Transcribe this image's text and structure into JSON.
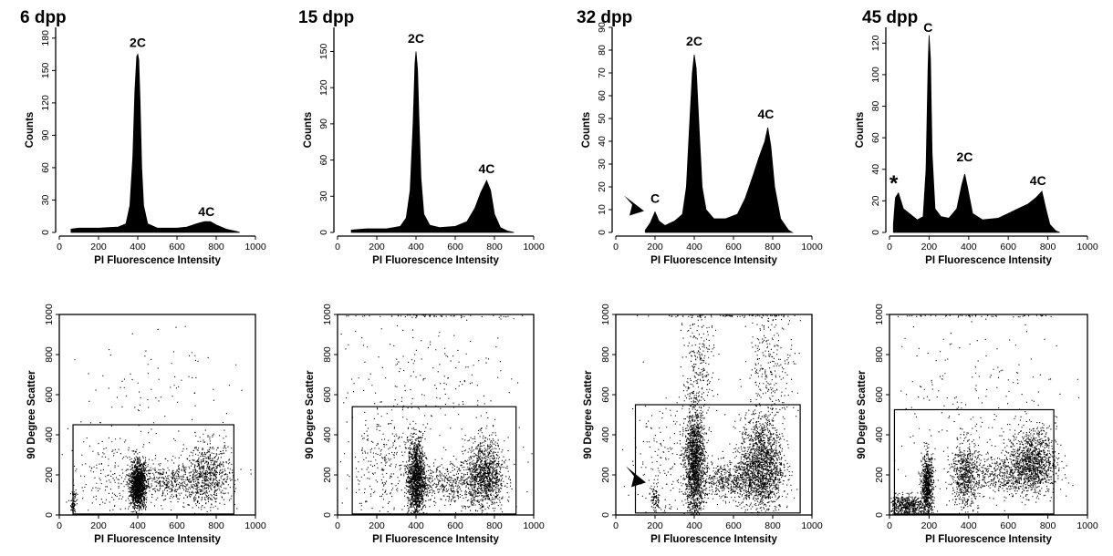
{
  "chart_data": [
    {
      "type": "area",
      "title": "6 dpp",
      "xlabel": "PI Fluorescence Intensity",
      "ylabel": "Counts",
      "xlim": [
        0,
        1000
      ],
      "ylim": [
        0,
        190
      ],
      "xticks": [
        "0",
        "200",
        "400",
        "600",
        "800",
        "1000"
      ],
      "yticks": [
        "0",
        "30",
        "60",
        "90",
        "120",
        "150",
        "180"
      ],
      "series": [
        {
          "points": [
            [
              60,
              3
            ],
            [
              100,
              4
            ],
            [
              200,
              4
            ],
            [
              300,
              5
            ],
            [
              340,
              8
            ],
            [
              360,
              25
            ],
            [
              375,
              70
            ],
            [
              385,
              130
            ],
            [
              395,
              163
            ],
            [
              400,
              165
            ],
            [
              405,
              160
            ],
            [
              412,
              120
            ],
            [
              420,
              60
            ],
            [
              430,
              25
            ],
            [
              450,
              8
            ],
            [
              500,
              4
            ],
            [
              600,
              4
            ],
            [
              650,
              5
            ],
            [
              700,
              8
            ],
            [
              740,
              10
            ],
            [
              770,
              10
            ],
            [
              800,
              7
            ],
            [
              850,
              3
            ],
            [
              900,
              1
            ],
            [
              920,
              0
            ]
          ]
        }
      ],
      "annotations": [
        {
          "text": "2C",
          "x": 400,
          "y": 172
        },
        {
          "text": "4C",
          "x": 750,
          "y": 15
        }
      ]
    },
    {
      "type": "area",
      "title": "15 dpp",
      "xlabel": "PI Fluorescence Intensity",
      "ylabel": "Counts",
      "xlim": [
        0,
        1000
      ],
      "ylim": [
        0,
        170
      ],
      "xticks": [
        "0",
        "200",
        "400",
        "600",
        "800",
        "1000"
      ],
      "yticks": [
        "0",
        "30",
        "60",
        "90",
        "120",
        "150"
      ],
      "series": [
        {
          "points": [
            [
              70,
              2
            ],
            [
              150,
              3
            ],
            [
              250,
              3
            ],
            [
              320,
              5
            ],
            [
              350,
              12
            ],
            [
              370,
              35
            ],
            [
              385,
              90
            ],
            [
              395,
              140
            ],
            [
              400,
              150
            ],
            [
              408,
              135
            ],
            [
              415,
              95
            ],
            [
              425,
              45
            ],
            [
              440,
              15
            ],
            [
              470,
              6
            ],
            [
              520,
              4
            ],
            [
              600,
              5
            ],
            [
              660,
              9
            ],
            [
              700,
              20
            ],
            [
              730,
              33
            ],
            [
              760,
              43
            ],
            [
              780,
              35
            ],
            [
              800,
              15
            ],
            [
              830,
              4
            ],
            [
              870,
              1
            ],
            [
              900,
              0
            ]
          ]
        }
      ],
      "annotations": [
        {
          "text": "2C",
          "x": 400,
          "y": 157
        },
        {
          "text": "4C",
          "x": 760,
          "y": 49
        }
      ]
    },
    {
      "type": "area",
      "title": "32 dpp",
      "xlabel": "PI Fluorescence Intensity",
      "ylabel": "Counts",
      "xlim": [
        0,
        1000
      ],
      "ylim": [
        0,
        90
      ],
      "xticks": [
        "0",
        "200",
        "400",
        "600",
        "800",
        "1000"
      ],
      "yticks": [
        "0",
        "10",
        "20",
        "30",
        "40",
        "50",
        "60",
        "70",
        "80",
        "90"
      ],
      "series": [
        {
          "points": [
            [
              150,
              1
            ],
            [
              175,
              4
            ],
            [
              200,
              9
            ],
            [
              220,
              5
            ],
            [
              250,
              3
            ],
            [
              300,
              5
            ],
            [
              340,
              8
            ],
            [
              360,
              20
            ],
            [
              375,
              45
            ],
            [
              390,
              70
            ],
            [
              400,
              78
            ],
            [
              410,
              72
            ],
            [
              425,
              45
            ],
            [
              440,
              20
            ],
            [
              460,
              10
            ],
            [
              500,
              6
            ],
            [
              560,
              6
            ],
            [
              620,
              8
            ],
            [
              660,
              15
            ],
            [
              700,
              25
            ],
            [
              730,
              33
            ],
            [
              760,
              40
            ],
            [
              775,
              46
            ],
            [
              790,
              38
            ],
            [
              810,
              20
            ],
            [
              840,
              6
            ],
            [
              880,
              1
            ],
            [
              900,
              0
            ]
          ]
        }
      ],
      "annotations": [
        {
          "text": "2C",
          "x": 400,
          "y": 82
        },
        {
          "text": "4C",
          "x": 765,
          "y": 50
        },
        {
          "text": "C",
          "x": 200,
          "y": 13
        }
      ]
    },
    {
      "type": "area",
      "title": "45 dpp",
      "xlabel": "PI Fluorescence Intensity",
      "ylabel": "Counts",
      "xlim": [
        0,
        1000
      ],
      "ylim": [
        0,
        130
      ],
      "xticks": [
        "0",
        "200",
        "400",
        "600",
        "800",
        "1000"
      ],
      "yticks": [
        "0",
        "20",
        "40",
        "60",
        "80",
        "100",
        "120"
      ],
      "series": [
        {
          "points": [
            [
              20,
              5
            ],
            [
              30,
              22
            ],
            [
              45,
              25
            ],
            [
              70,
              15
            ],
            [
              100,
              12
            ],
            [
              140,
              8
            ],
            [
              170,
              10
            ],
            [
              185,
              40
            ],
            [
              195,
              105
            ],
            [
              200,
              125
            ],
            [
              207,
              110
            ],
            [
              215,
              50
            ],
            [
              230,
              15
            ],
            [
              260,
              10
            ],
            [
              300,
              9
            ],
            [
              340,
              15
            ],
            [
              365,
              30
            ],
            [
              380,
              37
            ],
            [
              395,
              28
            ],
            [
              420,
              12
            ],
            [
              470,
              8
            ],
            [
              550,
              9
            ],
            [
              600,
              12
            ],
            [
              650,
              15
            ],
            [
              700,
              18
            ],
            [
              740,
              22
            ],
            [
              770,
              26
            ],
            [
              790,
              15
            ],
            [
              810,
              5
            ],
            [
              840,
              1
            ],
            [
              860,
              0
            ]
          ]
        }
      ],
      "annotations": [
        {
          "text": "C",
          "x": 195,
          "y": 127
        },
        {
          "text": "2C",
          "x": 380,
          "y": 45
        },
        {
          "text": "4C",
          "x": 750,
          "y": 30
        },
        {
          "text": "*",
          "x": 40,
          "y": 30
        }
      ]
    },
    {
      "type": "scatter",
      "title": "6 dpp",
      "xlabel": "PI Fluorescence Intensity",
      "ylabel": "90 Degree Scatter",
      "xlim": [
        0,
        1000
      ],
      "ylim": [
        0,
        1000
      ],
      "xticks": [
        "0",
        "200",
        "400",
        "600",
        "800",
        "1000"
      ],
      "yticks": [
        "0",
        "200",
        "400",
        "600",
        "800",
        "1000"
      ],
      "gate": {
        "x": [
          70,
          890
        ],
        "y": [
          5,
          450
        ]
      },
      "clusters": [
        {
          "x": 400,
          "y": 150,
          "sx": 20,
          "sy": 60,
          "n": 1400
        },
        {
          "x": 760,
          "y": 200,
          "sx": 60,
          "sy": 80,
          "n": 650
        },
        {
          "x": 560,
          "y": 170,
          "sx": 110,
          "sy": 50,
          "n": 500
        },
        {
          "x": 70,
          "y": 60,
          "sx": 8,
          "sy": 40,
          "n": 80
        },
        {
          "x": 480,
          "y": 550,
          "sx": 280,
          "sy": 200,
          "n": 130
        },
        {
          "x": 230,
          "y": 180,
          "sx": 90,
          "sy": 110,
          "n": 160
        }
      ]
    },
    {
      "type": "scatter",
      "title": "15 dpp",
      "xlabel": "PI Fluorescence Intensity",
      "ylabel": "90 Degree Scatter",
      "xlim": [
        0,
        1000
      ],
      "ylim": [
        0,
        1000
      ],
      "xticks": [
        "0",
        "200",
        "400",
        "600",
        "800",
        "1000"
      ],
      "yticks": [
        "0",
        "200",
        "400",
        "600",
        "800",
        "1000"
      ],
      "gate": {
        "x": [
          75,
          910
        ],
        "y": [
          5,
          540
        ]
      },
      "clusters": [
        {
          "x": 400,
          "y": 180,
          "sx": 22,
          "sy": 100,
          "n": 1400
        },
        {
          "x": 750,
          "y": 200,
          "sx": 50,
          "sy": 90,
          "n": 1100
        },
        {
          "x": 580,
          "y": 160,
          "sx": 100,
          "sy": 50,
          "n": 450
        },
        {
          "x": 230,
          "y": 230,
          "sx": 100,
          "sy": 150,
          "n": 320
        },
        {
          "x": 480,
          "y": 650,
          "sx": 260,
          "sy": 190,
          "n": 220
        },
        {
          "x": 480,
          "y": 995,
          "sx": 250,
          "sy": 3,
          "n": 60
        }
      ]
    },
    {
      "type": "scatter",
      "title": "32 dpp",
      "xlabel": "PI Fluorescence Intensity",
      "ylabel": "90 Degree Scatter",
      "xlim": [
        0,
        1000
      ],
      "ylim": [
        0,
        1000
      ],
      "xticks": [
        "0",
        "200",
        "400",
        "600",
        "800",
        "1000"
      ],
      "yticks": [
        "0",
        "200",
        "400",
        "600",
        "800",
        "1000"
      ],
      "gate": {
        "x": [
          100,
          940
        ],
        "y": [
          10,
          550
        ]
      },
      "clusters": [
        {
          "x": 400,
          "y": 250,
          "sx": 25,
          "sy": 140,
          "n": 1700
        },
        {
          "x": 740,
          "y": 250,
          "sx": 55,
          "sy": 120,
          "n": 1700
        },
        {
          "x": 580,
          "y": 170,
          "sx": 90,
          "sy": 45,
          "n": 550
        },
        {
          "x": 200,
          "y": 80,
          "sx": 12,
          "sy": 35,
          "n": 90
        },
        {
          "x": 420,
          "y": 720,
          "sx": 40,
          "sy": 170,
          "n": 260
        },
        {
          "x": 790,
          "y": 750,
          "sx": 60,
          "sy": 160,
          "n": 280
        },
        {
          "x": 250,
          "y": 280,
          "sx": 90,
          "sy": 160,
          "n": 170
        },
        {
          "x": 560,
          "y": 995,
          "sx": 230,
          "sy": 3,
          "n": 80
        }
      ],
      "annotations": [
        {
          "text": "arrowhead",
          "x": 200,
          "y": 80
        }
      ]
    },
    {
      "type": "scatter",
      "title": "45 dpp",
      "xlabel": "PI Fluorescence Intensity",
      "ylabel": "90 Degree Scatter",
      "xlim": [
        0,
        1000
      ],
      "ylim": [
        0,
        1000
      ],
      "xticks": [
        "0",
        "200",
        "400",
        "600",
        "800",
        "1000"
      ],
      "yticks": [
        "0",
        "200",
        "400",
        "600",
        "800",
        "1000"
      ],
      "gate": {
        "x": [
          25,
          830
        ],
        "y": [
          5,
          525
        ]
      },
      "clusters": [
        {
          "x": 190,
          "y": 150,
          "sx": 15,
          "sy": 75,
          "n": 750
        },
        {
          "x": 90,
          "y": 50,
          "sx": 55,
          "sy": 25,
          "n": 550
        },
        {
          "x": 380,
          "y": 200,
          "sx": 35,
          "sy": 90,
          "n": 600
        },
        {
          "x": 720,
          "y": 270,
          "sx": 60,
          "sy": 80,
          "n": 1100
        },
        {
          "x": 560,
          "y": 200,
          "sx": 110,
          "sy": 50,
          "n": 500
        },
        {
          "x": 420,
          "y": 600,
          "sx": 250,
          "sy": 190,
          "n": 200
        },
        {
          "x": 400,
          "y": 995,
          "sx": 250,
          "sy": 3,
          "n": 50
        }
      ]
    }
  ]
}
